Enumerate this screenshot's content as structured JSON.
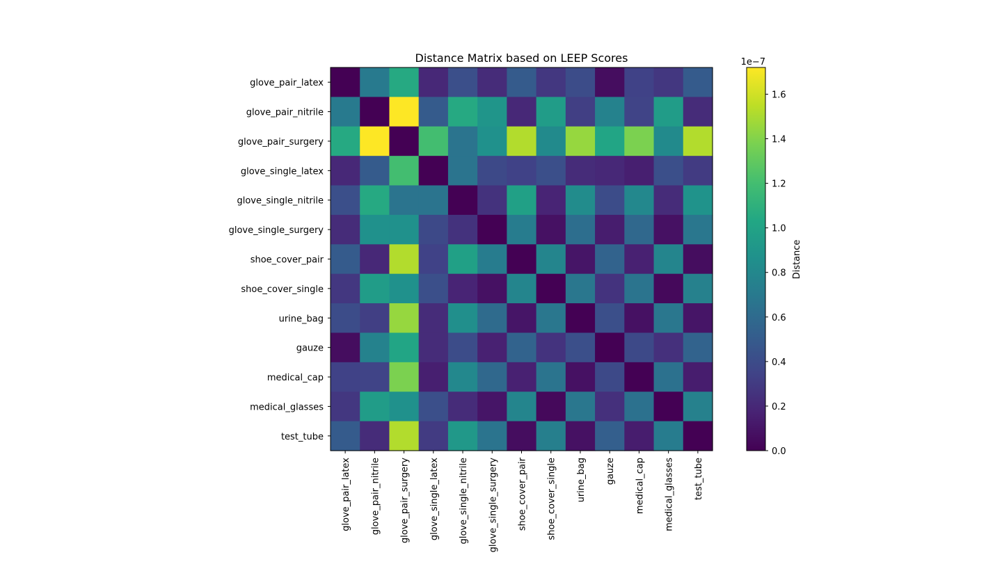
{
  "chart_data": {
    "type": "heatmap",
    "title": "Distance Matrix based on LEEP Scores",
    "labels": [
      "glove_pair_latex",
      "glove_pair_nitrile",
      "glove_pair_surgery",
      "glove_single_latex",
      "glove_single_nitrile",
      "glove_single_surgery",
      "shoe_cover_pair",
      "shoe_cover_single",
      "urine_bag",
      "gauze",
      "medical_cap",
      "medical_glasses",
      "test_tube"
    ],
    "values_scale_note": "1e−7",
    "values": [
      [
        0.0,
        0.7,
        1.05,
        0.2,
        0.42,
        0.22,
        0.5,
        0.28,
        0.4,
        0.06,
        0.34,
        0.28,
        0.5
      ],
      [
        0.7,
        0.0,
        1.72,
        0.5,
        1.05,
        0.9,
        0.2,
        0.95,
        0.32,
        0.76,
        0.35,
        0.95,
        0.22
      ],
      [
        1.05,
        1.72,
        0.0,
        1.2,
        0.66,
        0.87,
        1.52,
        0.82,
        1.45,
        1.02,
        1.38,
        0.82,
        1.52
      ],
      [
        0.2,
        0.5,
        1.2,
        0.0,
        0.66,
        0.38,
        0.34,
        0.42,
        0.22,
        0.2,
        0.15,
        0.42,
        0.3
      ],
      [
        0.42,
        1.05,
        0.66,
        0.66,
        0.0,
        0.25,
        0.98,
        0.18,
        0.83,
        0.4,
        0.8,
        0.22,
        0.88
      ],
      [
        0.22,
        0.87,
        0.87,
        0.38,
        0.25,
        0.0,
        0.72,
        0.08,
        0.62,
        0.14,
        0.58,
        0.08,
        0.68
      ],
      [
        0.5,
        0.2,
        1.52,
        0.34,
        0.98,
        0.72,
        0.0,
        0.78,
        0.1,
        0.55,
        0.16,
        0.78,
        0.06
      ],
      [
        0.28,
        0.95,
        0.87,
        0.42,
        0.18,
        0.08,
        0.78,
        0.0,
        0.68,
        0.26,
        0.66,
        0.04,
        0.75
      ],
      [
        0.4,
        0.32,
        1.45,
        0.22,
        0.85,
        0.6,
        0.1,
        0.68,
        0.0,
        0.42,
        0.08,
        0.68,
        0.1
      ],
      [
        0.06,
        0.76,
        1.02,
        0.22,
        0.4,
        0.16,
        0.55,
        0.26,
        0.42,
        0.0,
        0.38,
        0.24,
        0.55
      ],
      [
        0.34,
        0.35,
        1.38,
        0.15,
        0.8,
        0.58,
        0.16,
        0.66,
        0.08,
        0.38,
        0.0,
        0.64,
        0.14
      ],
      [
        0.28,
        0.95,
        0.87,
        0.42,
        0.22,
        0.1,
        0.78,
        0.04,
        0.68,
        0.24,
        0.64,
        0.0,
        0.75
      ],
      [
        0.5,
        0.22,
        1.52,
        0.3,
        0.92,
        0.66,
        0.06,
        0.74,
        0.08,
        0.52,
        0.14,
        0.72,
        0.0
      ]
    ],
    "colorbar": {
      "label": "Distance",
      "colormap": "viridis",
      "range": [
        0,
        1.72
      ],
      "ticks": [
        0.0,
        0.2,
        0.4,
        0.6,
        0.8,
        1.0,
        1.2,
        1.4,
        1.6
      ],
      "tick_labels": [
        "0.0",
        "0.2",
        "0.4",
        "0.6",
        "0.8",
        "1.0",
        "1.2",
        "1.4",
        "1.6"
      ],
      "exponent_label": "1e−7"
    },
    "grid": false,
    "x_tick_rotation": "vertical"
  }
}
